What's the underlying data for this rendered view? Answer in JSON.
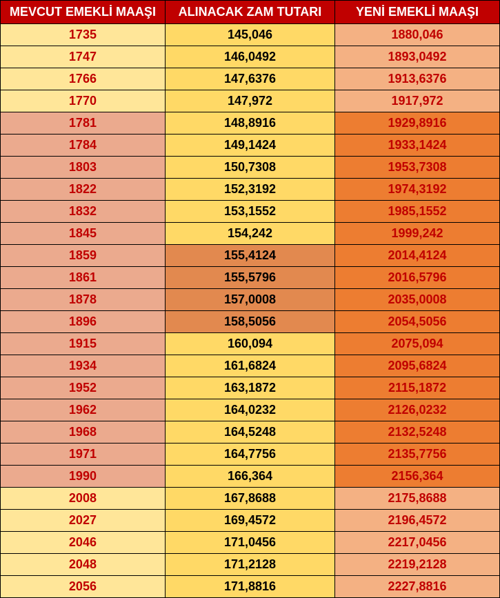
{
  "headers": {
    "col1": "MEVCUT EMEKLİ MAAŞI",
    "col2": "ALINACAK ZAM TUTARI",
    "col3": "YENİ EMEKLİ MAAŞI"
  },
  "colors": {
    "header_bg": "#c00000",
    "header_text": "#ffffff",
    "col1_text": "#c00000",
    "col2_text": "#000000",
    "col3_text": "#c00000",
    "yellow_light": "#ffe699",
    "yellow_mid": "#ffd966",
    "orange_light": "#f4b183",
    "orange_mid": "#ed7d31",
    "orange_dark": "#e2894f",
    "pink_overlay": "#e89b7a"
  },
  "rows": [
    {
      "c1": "1735",
      "c2": "145,046",
      "c3": "1880,046",
      "bg1": "bg-yellow-light",
      "bg2": "bg-yellow-mid",
      "bg3": "bg-orange-light"
    },
    {
      "c1": "1747",
      "c2": "146,0492",
      "c3": "1893,0492",
      "bg1": "bg-yellow-light",
      "bg2": "bg-yellow-mid",
      "bg3": "bg-orange-light"
    },
    {
      "c1": "1766",
      "c2": "147,6376",
      "c3": "1913,6376",
      "bg1": "bg-yellow-light",
      "bg2": "bg-yellow-mid",
      "bg3": "bg-orange-light"
    },
    {
      "c1": "1770",
      "c2": "147,972",
      "c3": "1917,972",
      "bg1": "bg-yellow-light",
      "bg2": "bg-yellow-mid",
      "bg3": "bg-orange-light"
    },
    {
      "c1": "1781",
      "c2": "148,8916",
      "c3": "1929,8916",
      "bg1": "bg-pink",
      "bg2": "bg-yellow-mid",
      "bg3": "bg-orange-mid"
    },
    {
      "c1": "1784",
      "c2": "149,1424",
      "c3": "1933,1424",
      "bg1": "bg-pink",
      "bg2": "bg-yellow-mid",
      "bg3": "bg-orange-mid"
    },
    {
      "c1": "1803",
      "c2": "150,7308",
      "c3": "1953,7308",
      "bg1": "bg-pink",
      "bg2": "bg-yellow-mid",
      "bg3": "bg-orange-mid"
    },
    {
      "c1": "1822",
      "c2": "152,3192",
      "c3": "1974,3192",
      "bg1": "bg-pink",
      "bg2": "bg-yellow-mid",
      "bg3": "bg-orange-mid"
    },
    {
      "c1": "1832",
      "c2": "153,1552",
      "c3": "1985,1552",
      "bg1": "bg-pink",
      "bg2": "bg-yellow-mid",
      "bg3": "bg-orange-mid"
    },
    {
      "c1": "1845",
      "c2": "154,242",
      "c3": "1999,242",
      "bg1": "bg-pink",
      "bg2": "bg-yellow-mid",
      "bg3": "bg-orange-mid"
    },
    {
      "c1": "1859",
      "c2": "155,4124",
      "c3": "2014,4124",
      "bg1": "bg-pink",
      "bg2": "bg-orange-dark",
      "bg3": "bg-orange-mid"
    },
    {
      "c1": "1861",
      "c2": "155,5796",
      "c3": "2016,5796",
      "bg1": "bg-pink",
      "bg2": "bg-orange-dark",
      "bg3": "bg-orange-mid"
    },
    {
      "c1": "1878",
      "c2": "157,0008",
      "c3": "2035,0008",
      "bg1": "bg-pink",
      "bg2": "bg-orange-dark",
      "bg3": "bg-orange-mid"
    },
    {
      "c1": "1896",
      "c2": "158,5056",
      "c3": "2054,5056",
      "bg1": "bg-pink",
      "bg2": "bg-orange-dark",
      "bg3": "bg-orange-mid"
    },
    {
      "c1": "1915",
      "c2": "160,094",
      "c3": "2075,094",
      "bg1": "bg-pink",
      "bg2": "bg-yellow-mid",
      "bg3": "bg-orange-mid"
    },
    {
      "c1": "1934",
      "c2": "161,6824",
      "c3": "2095,6824",
      "bg1": "bg-pink",
      "bg2": "bg-yellow-mid",
      "bg3": "bg-orange-mid"
    },
    {
      "c1": "1952",
      "c2": "163,1872",
      "c3": "2115,1872",
      "bg1": "bg-pink",
      "bg2": "bg-yellow-mid",
      "bg3": "bg-orange-mid"
    },
    {
      "c1": "1962",
      "c2": "164,0232",
      "c3": "2126,0232",
      "bg1": "bg-pink",
      "bg2": "bg-yellow-mid",
      "bg3": "bg-orange-mid"
    },
    {
      "c1": "1968",
      "c2": "164,5248",
      "c3": "2132,5248",
      "bg1": "bg-pink",
      "bg2": "bg-yellow-mid",
      "bg3": "bg-orange-mid"
    },
    {
      "c1": "1971",
      "c2": "164,7756",
      "c3": "2135,7756",
      "bg1": "bg-pink",
      "bg2": "bg-yellow-mid",
      "bg3": "bg-orange-mid"
    },
    {
      "c1": "1990",
      "c2": "166,364",
      "c3": "2156,364",
      "bg1": "bg-pink",
      "bg2": "bg-yellow-mid",
      "bg3": "bg-orange-mid"
    },
    {
      "c1": "2008",
      "c2": "167,8688",
      "c3": "2175,8688",
      "bg1": "bg-yellow-light",
      "bg2": "bg-yellow-mid",
      "bg3": "bg-orange-light"
    },
    {
      "c1": "2027",
      "c2": "169,4572",
      "c3": "2196,4572",
      "bg1": "bg-yellow-light",
      "bg2": "bg-yellow-mid",
      "bg3": "bg-orange-light"
    },
    {
      "c1": "2046",
      "c2": "171,0456",
      "c3": "2217,0456",
      "bg1": "bg-yellow-light",
      "bg2": "bg-yellow-mid",
      "bg3": "bg-orange-light"
    },
    {
      "c1": "2048",
      "c2": "171,2128",
      "c3": "2219,2128",
      "bg1": "bg-yellow-light",
      "bg2": "bg-yellow-mid",
      "bg3": "bg-orange-light"
    },
    {
      "c1": "2056",
      "c2": "171,8816",
      "c3": "2227,8816",
      "bg1": "bg-yellow-light",
      "bg2": "bg-yellow-mid",
      "bg3": "bg-orange-light"
    }
  ]
}
